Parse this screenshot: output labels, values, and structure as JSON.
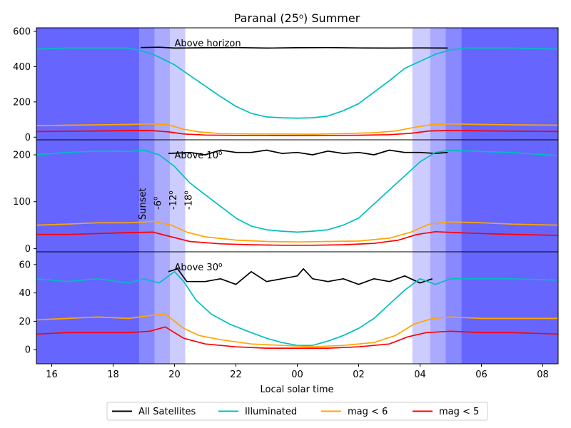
{
  "chart_data": {
    "type": "line",
    "title_main": "Paranal (25",
    "title_sup": "o",
    "title_rest": ") Summer",
    "xlabel": "Local solar time",
    "x_ticks": [
      {
        "x": 16,
        "label": "16"
      },
      {
        "x": 18,
        "label": "18"
      },
      {
        "x": 20,
        "label": "20"
      },
      {
        "x": 22,
        "label": "22"
      },
      {
        "x": 24,
        "label": "00"
      },
      {
        "x": 26,
        "label": "02"
      },
      {
        "x": 28,
        "label": "04"
      },
      {
        "x": 30,
        "label": "06"
      },
      {
        "x": 32,
        "label": "08"
      }
    ],
    "xlim": [
      15.5,
      32.5
    ],
    "twilight": {
      "sunset": 18.85,
      "civil_dusk": 19.35,
      "nautical_dusk": 19.85,
      "astro_dusk": 20.35,
      "astro_dawn": 27.75,
      "nautical_dawn": 28.33,
      "civil_dawn": 28.83,
      "sunrise": 29.35,
      "colors": {
        "night": "#6666ff",
        "astro": "#8888ff",
        "nautical": "#aaaaff",
        "civil": "#ccccff"
      }
    },
    "twilight_labels": [
      {
        "text": "Sunset",
        "sup": "",
        "x": 18.85
      },
      {
        "text": "-6",
        "sup": "o",
        "x": 19.35
      },
      {
        "text": "-12",
        "sup": "o",
        "x": 19.85
      },
      {
        "text": "-18",
        "sup": "o",
        "x": 20.35
      }
    ],
    "series_styles": [
      {
        "name": "All Satellites",
        "color": "#000000"
      },
      {
        "name": "Illuminated",
        "color": "#00bfbf"
      },
      {
        "name": "mag < 6",
        "color": "#ffa500"
      },
      {
        "name": "mag < 5",
        "color": "#ff0000"
      }
    ],
    "panels": [
      {
        "label": "Above horizon",
        "label_sup": "",
        "ylim": [
          -15,
          620
        ],
        "y_ticks": [
          0,
          200,
          400,
          600
        ],
        "all_satellites": [
          [
            18.9,
            508
          ],
          [
            19.5,
            510
          ],
          [
            20,
            505
          ],
          [
            21,
            507
          ],
          [
            22,
            508
          ],
          [
            23,
            505
          ],
          [
            24,
            507
          ],
          [
            25,
            508
          ],
          [
            26,
            506
          ],
          [
            27,
            505
          ],
          [
            28,
            506
          ],
          [
            28.9,
            505
          ]
        ],
        "illuminated": [
          [
            15.5,
            500
          ],
          [
            16.5,
            505
          ],
          [
            17.5,
            505
          ],
          [
            18.5,
            505
          ],
          [
            18.9,
            490
          ],
          [
            19.3,
            470
          ],
          [
            19.6,
            445
          ],
          [
            20,
            410
          ],
          [
            20.5,
            350
          ],
          [
            21,
            290
          ],
          [
            21.5,
            230
          ],
          [
            22,
            175
          ],
          [
            22.5,
            135
          ],
          [
            23,
            115
          ],
          [
            23.5,
            110
          ],
          [
            24,
            108
          ],
          [
            24.5,
            110
          ],
          [
            25,
            120
          ],
          [
            25.5,
            150
          ],
          [
            26,
            190
          ],
          [
            26.5,
            255
          ],
          [
            27,
            320
          ],
          [
            27.5,
            390
          ],
          [
            28,
            430
          ],
          [
            28.5,
            470
          ],
          [
            29,
            495
          ],
          [
            29.5,
            505
          ],
          [
            30,
            505
          ],
          [
            31,
            505
          ],
          [
            32.5,
            500
          ]
        ],
        "mag6": [
          [
            15.5,
            65
          ],
          [
            16.5,
            68
          ],
          [
            17.5,
            70
          ],
          [
            18.5,
            72
          ],
          [
            19.2,
            75
          ],
          [
            19.8,
            70
          ],
          [
            20.3,
            45
          ],
          [
            20.8,
            30
          ],
          [
            21.5,
            20
          ],
          [
            22.5,
            18
          ],
          [
            23.5,
            18
          ],
          [
            24.5,
            17
          ],
          [
            25.5,
            20
          ],
          [
            26.5,
            25
          ],
          [
            27.2,
            35
          ],
          [
            27.8,
            55
          ],
          [
            28.4,
            72
          ],
          [
            29,
            75
          ],
          [
            30,
            72
          ],
          [
            31,
            70
          ],
          [
            32.5,
            68
          ]
        ],
        "mag5": [
          [
            15.5,
            32
          ],
          [
            16.5,
            33
          ],
          [
            17.5,
            35
          ],
          [
            18.5,
            37
          ],
          [
            19.2,
            38
          ],
          [
            19.8,
            30
          ],
          [
            20.3,
            18
          ],
          [
            21,
            12
          ],
          [
            22,
            10
          ],
          [
            23,
            10
          ],
          [
            24,
            9
          ],
          [
            25,
            10
          ],
          [
            26,
            11
          ],
          [
            27,
            14
          ],
          [
            27.7,
            22
          ],
          [
            28.3,
            35
          ],
          [
            29,
            38
          ],
          [
            30,
            36
          ],
          [
            31,
            34
          ],
          [
            32.5,
            32
          ]
        ]
      },
      {
        "label": "Above 10",
        "label_sup": "o",
        "ylim": [
          -7,
          232
        ],
        "y_ticks": [
          0,
          100,
          200
        ],
        "all_satellites": [
          [
            19.8,
            203
          ],
          [
            20.5,
            205
          ],
          [
            21,
            200
          ],
          [
            21.5,
            210
          ],
          [
            22,
            205
          ],
          [
            22.5,
            205
          ],
          [
            23,
            210
          ],
          [
            23.5,
            203
          ],
          [
            24,
            205
          ],
          [
            24.5,
            200
          ],
          [
            25,
            208
          ],
          [
            25.5,
            203
          ],
          [
            26,
            205
          ],
          [
            26.5,
            200
          ],
          [
            27,
            210
          ],
          [
            27.5,
            205
          ],
          [
            28,
            205
          ],
          [
            28.5,
            203
          ],
          [
            28.9,
            205
          ]
        ],
        "illuminated": [
          [
            15.5,
            200
          ],
          [
            16.5,
            205
          ],
          [
            17.5,
            208
          ],
          [
            18.5,
            207
          ],
          [
            19,
            210
          ],
          [
            19.5,
            200
          ],
          [
            20,
            175
          ],
          [
            20.5,
            140
          ],
          [
            21,
            115
          ],
          [
            21.5,
            90
          ],
          [
            22,
            65
          ],
          [
            22.5,
            48
          ],
          [
            23,
            40
          ],
          [
            23.5,
            37
          ],
          [
            24,
            35
          ],
          [
            24.5,
            37
          ],
          [
            25,
            40
          ],
          [
            25.5,
            50
          ],
          [
            26,
            65
          ],
          [
            26.5,
            95
          ],
          [
            27,
            125
          ],
          [
            27.5,
            155
          ],
          [
            28,
            185
          ],
          [
            28.5,
            205
          ],
          [
            29,
            210
          ],
          [
            30,
            207
          ],
          [
            31,
            205
          ],
          [
            32.5,
            198
          ]
        ],
        "mag6": [
          [
            15.5,
            50
          ],
          [
            16.5,
            52
          ],
          [
            17.5,
            55
          ],
          [
            18.5,
            55
          ],
          [
            19.3,
            58
          ],
          [
            19.9,
            50
          ],
          [
            20.4,
            35
          ],
          [
            21,
            25
          ],
          [
            22,
            18
          ],
          [
            23,
            15
          ],
          [
            24,
            14
          ],
          [
            25,
            15
          ],
          [
            26,
            16
          ],
          [
            27,
            22
          ],
          [
            27.7,
            35
          ],
          [
            28.3,
            52
          ],
          [
            29,
            57
          ],
          [
            30,
            55
          ],
          [
            31,
            52
          ],
          [
            32.5,
            50
          ]
        ],
        "mag5": [
          [
            15.5,
            30
          ],
          [
            16.5,
            30
          ],
          [
            17.5,
            32
          ],
          [
            18.5,
            34
          ],
          [
            19.3,
            35
          ],
          [
            19.9,
            25
          ],
          [
            20.5,
            15
          ],
          [
            21.5,
            10
          ],
          [
            22.5,
            8
          ],
          [
            23.5,
            7
          ],
          [
            24.5,
            7
          ],
          [
            25.5,
            8
          ],
          [
            26.5,
            11
          ],
          [
            27.3,
            18
          ],
          [
            27.9,
            30
          ],
          [
            28.5,
            36
          ],
          [
            29.5,
            33
          ],
          [
            30.5,
            31
          ],
          [
            32.5,
            28
          ]
        ]
      },
      {
        "label": "Above 30",
        "label_sup": "o",
        "ylim": [
          -10,
          69
        ],
        "y_ticks": [
          0,
          20,
          40,
          60
        ],
        "all_satellites": [
          [
            19.8,
            55
          ],
          [
            20.1,
            57
          ],
          [
            20.4,
            48
          ],
          [
            21,
            48
          ],
          [
            21.5,
            50
          ],
          [
            22,
            46
          ],
          [
            22.5,
            55
          ],
          [
            23,
            48
          ],
          [
            23.5,
            50
          ],
          [
            24,
            52
          ],
          [
            24.2,
            57
          ],
          [
            24.5,
            50
          ],
          [
            25,
            48
          ],
          [
            25.5,
            50
          ],
          [
            26,
            46
          ],
          [
            26.5,
            50
          ],
          [
            27,
            48
          ],
          [
            27.5,
            52
          ],
          [
            28,
            47
          ],
          [
            28.4,
            50
          ]
        ],
        "illuminated": [
          [
            15.5,
            50
          ],
          [
            16.5,
            48
          ],
          [
            17.5,
            50
          ],
          [
            18.5,
            47
          ],
          [
            19,
            50
          ],
          [
            19.5,
            47
          ],
          [
            20,
            55
          ],
          [
            20.3,
            48
          ],
          [
            20.7,
            35
          ],
          [
            21.2,
            25
          ],
          [
            21.8,
            18
          ],
          [
            22.5,
            12
          ],
          [
            23,
            8
          ],
          [
            23.5,
            5
          ],
          [
            24,
            3
          ],
          [
            24.5,
            3
          ],
          [
            25,
            6
          ],
          [
            25.5,
            10
          ],
          [
            26,
            15
          ],
          [
            26.5,
            22
          ],
          [
            27,
            32
          ],
          [
            27.5,
            42
          ],
          [
            28,
            50
          ],
          [
            28.5,
            46
          ],
          [
            29,
            50
          ],
          [
            30,
            50
          ],
          [
            31,
            50
          ],
          [
            32.5,
            49
          ]
        ],
        "mag6": [
          [
            15.5,
            21
          ],
          [
            16.5,
            22
          ],
          [
            17.5,
            23
          ],
          [
            18.5,
            22
          ],
          [
            19.2,
            24
          ],
          [
            19.7,
            25
          ],
          [
            20.3,
            15
          ],
          [
            20.8,
            10
          ],
          [
            21.5,
            7
          ],
          [
            22.5,
            4
          ],
          [
            23.5,
            3
          ],
          [
            24.5,
            2
          ],
          [
            25.5,
            3
          ],
          [
            26.5,
            5
          ],
          [
            27.2,
            10
          ],
          [
            27.8,
            18
          ],
          [
            28.4,
            22
          ],
          [
            29,
            23
          ],
          [
            30,
            22
          ],
          [
            31,
            22
          ],
          [
            32.5,
            22
          ]
        ],
        "mag5": [
          [
            15.5,
            11
          ],
          [
            16.5,
            12
          ],
          [
            17.5,
            12
          ],
          [
            18.5,
            12
          ],
          [
            19.2,
            13
          ],
          [
            19.7,
            16
          ],
          [
            20.3,
            8
          ],
          [
            21,
            4
          ],
          [
            22,
            2
          ],
          [
            23,
            1
          ],
          [
            24,
            1
          ],
          [
            25,
            1
          ],
          [
            26,
            2
          ],
          [
            27,
            4
          ],
          [
            27.6,
            9
          ],
          [
            28.2,
            12
          ],
          [
            29,
            13
          ],
          [
            30,
            12
          ],
          [
            31,
            12
          ],
          [
            32.5,
            11
          ]
        ]
      }
    ]
  }
}
